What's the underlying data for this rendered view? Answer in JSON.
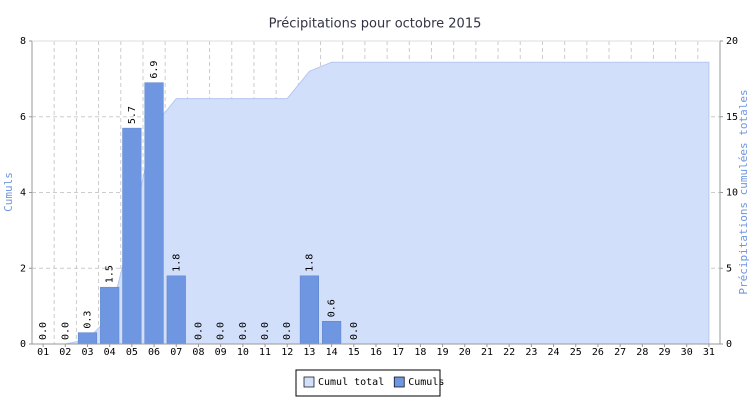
{
  "chart_data": {
    "type": "bar",
    "title": "Précipitations pour octobre 2015",
    "y_label": "Cumuls",
    "y2_label": "Précipitations cumulées totales",
    "categories": [
      "01",
      "02",
      "03",
      "04",
      "05",
      "06",
      "07",
      "08",
      "09",
      "10",
      "11",
      "12",
      "13",
      "14",
      "15",
      "16",
      "17",
      "18",
      "19",
      "20",
      "21",
      "22",
      "23",
      "24",
      "25",
      "26",
      "27",
      "28",
      "29",
      "30",
      "31"
    ],
    "series": [
      {
        "name": "Cumul total",
        "type": "area",
        "axis": "y2",
        "color": "#d2dffa",
        "values": [
          0,
          0,
          0.3,
          1.8,
          7.5,
          14.4,
          16.2,
          16.2,
          16.2,
          16.2,
          16.2,
          16.2,
          18.0,
          18.6,
          18.6,
          18.6,
          18.6,
          18.6,
          18.6,
          18.6,
          18.6,
          18.6,
          18.6,
          18.6,
          18.6,
          18.6,
          18.6,
          18.6,
          18.6,
          18.6,
          18.6
        ]
      },
      {
        "name": "Cumuls",
        "type": "bar",
        "color": "#6f96e0",
        "values": [
          0,
          0,
          0.3,
          1.5,
          5.7,
          6.9,
          1.8,
          0,
          0,
          0,
          0,
          0,
          1.8,
          0.6,
          0,
          null,
          null,
          null,
          null,
          null,
          null,
          null,
          null,
          null,
          null,
          null,
          null,
          null,
          null,
          null,
          null
        ],
        "value_labels": [
          "0.0",
          "0.0",
          "0.3",
          "1.5",
          "5.7",
          "6.9",
          "1.8",
          "0.0",
          "0.0",
          "0.0",
          "0.0",
          "0.0",
          "1.8",
          "0.6",
          "0.0",
          null,
          null,
          null,
          null,
          null,
          null,
          null,
          null,
          null,
          null,
          null,
          null,
          null,
          null,
          null,
          null
        ]
      }
    ],
    "ylim": [
      0,
      8
    ],
    "yticks": [
      0,
      2,
      4,
      6,
      8
    ],
    "y2lim": [
      0,
      20
    ],
    "y2ticks": [
      0,
      5,
      10,
      15,
      20
    ],
    "grid": true,
    "legend": "bottom"
  }
}
